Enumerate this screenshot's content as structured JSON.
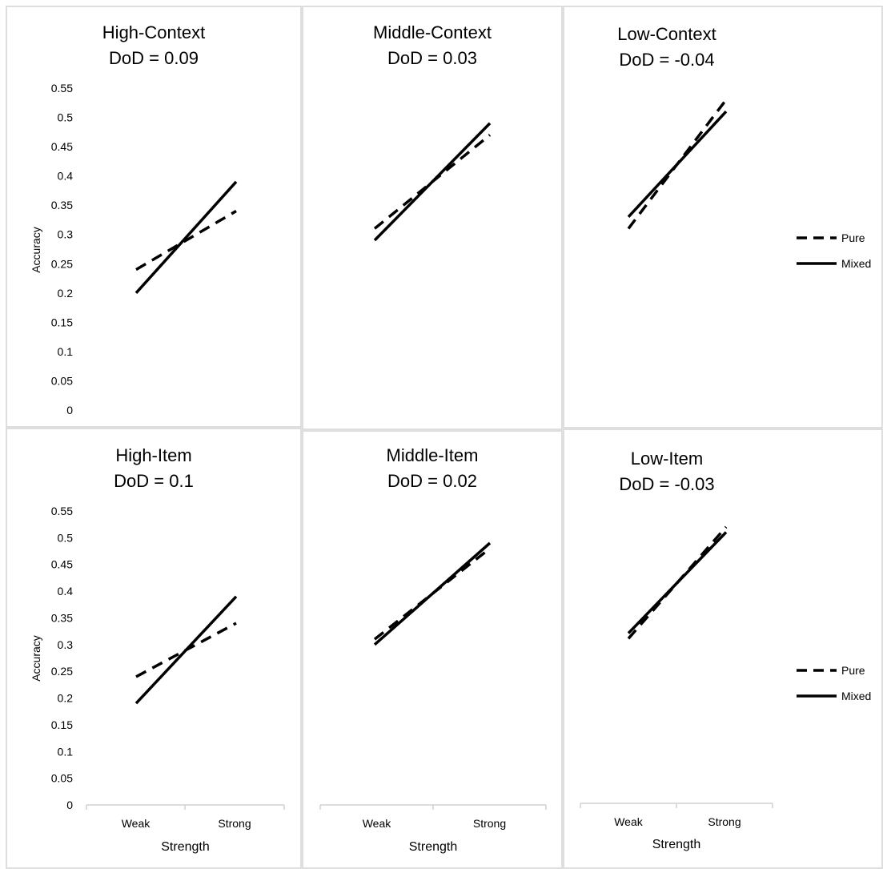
{
  "figure": {
    "legend": {
      "pure": "Pure",
      "mixed": "Mixed"
    }
  },
  "chart_data": [
    {
      "type": "line",
      "title": "High-Context",
      "subtitle": "DoD = 0.09",
      "ylabel": "Accuracy",
      "xlabel": "",
      "categories": [
        "Weak",
        "Strong"
      ],
      "ylim": [
        0,
        0.55
      ],
      "yticks": [
        "0",
        "0.05",
        "0.1",
        "0.15",
        "0.2",
        "0.25",
        "0.3",
        "0.35",
        "0.4",
        "0.45",
        "0.5",
        "0.55"
      ],
      "series": [
        {
          "name": "Pure",
          "style": "dashed",
          "values": [
            0.24,
            0.34
          ]
        },
        {
          "name": "Mixed",
          "style": "solid",
          "values": [
            0.2,
            0.39
          ]
        }
      ]
    },
    {
      "type": "line",
      "title": "Middle-Context",
      "subtitle": "DoD = 0.03",
      "ylabel": "",
      "xlabel": "",
      "categories": [
        "Weak",
        "Strong"
      ],
      "ylim": [
        0,
        0.55
      ],
      "yticks": [],
      "series": [
        {
          "name": "Pure",
          "style": "dashed",
          "values": [
            0.31,
            0.47
          ]
        },
        {
          "name": "Mixed",
          "style": "solid",
          "values": [
            0.29,
            0.49
          ]
        }
      ]
    },
    {
      "type": "line",
      "title": "Low-Context",
      "subtitle": "DoD = -0.04",
      "ylabel": "",
      "xlabel": "",
      "categories": [
        "Weak",
        "Strong"
      ],
      "ylim": [
        0,
        0.55
      ],
      "yticks": [],
      "series": [
        {
          "name": "Pure",
          "style": "dashed",
          "values": [
            0.31,
            0.53
          ]
        },
        {
          "name": "Mixed",
          "style": "solid",
          "values": [
            0.33,
            0.51
          ]
        }
      ]
    },
    {
      "type": "line",
      "title": "High-Item",
      "subtitle": "DoD = 0.1",
      "ylabel": "Accuracy",
      "xlabel": "Strength",
      "categories": [
        "Weak",
        "Strong"
      ],
      "ylim": [
        0,
        0.55
      ],
      "yticks": [
        "0",
        "0.05",
        "0.1",
        "0.15",
        "0.2",
        "0.25",
        "0.3",
        "0.35",
        "0.4",
        "0.45",
        "0.5",
        "0.55"
      ],
      "series": [
        {
          "name": "Pure",
          "style": "dashed",
          "values": [
            0.24,
            0.34
          ]
        },
        {
          "name": "Mixed",
          "style": "solid",
          "values": [
            0.19,
            0.39
          ]
        }
      ]
    },
    {
      "type": "line",
      "title": "Middle-Item",
      "subtitle": "DoD = 0.02",
      "ylabel": "",
      "xlabel": "Strength",
      "categories": [
        "Weak",
        "Strong"
      ],
      "ylim": [
        0,
        0.55
      ],
      "yticks": [],
      "series": [
        {
          "name": "Pure",
          "style": "dashed",
          "values": [
            0.31,
            0.48
          ]
        },
        {
          "name": "Mixed",
          "style": "solid",
          "values": [
            0.3,
            0.49
          ]
        }
      ]
    },
    {
      "type": "line",
      "title": "Low-Item",
      "subtitle": "DoD = -0.03",
      "ylabel": "",
      "xlabel": "Strength",
      "categories": [
        "Weak",
        "Strong"
      ],
      "ylim": [
        0,
        0.55
      ],
      "yticks": [],
      "series": [
        {
          "name": "Pure",
          "style": "dashed",
          "values": [
            0.31,
            0.52
          ]
        },
        {
          "name": "Mixed",
          "style": "solid",
          "values": [
            0.32,
            0.51
          ]
        }
      ]
    }
  ]
}
